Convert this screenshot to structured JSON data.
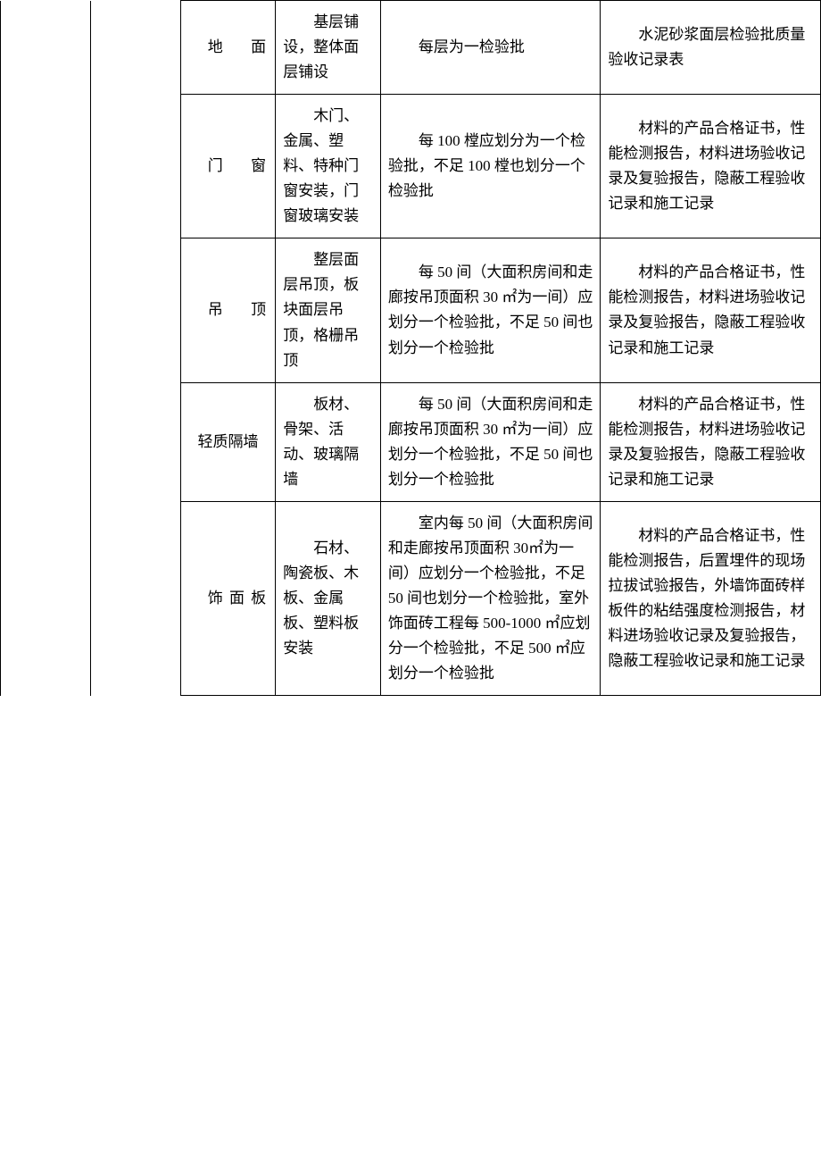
{
  "rows": [
    {
      "category": "地面",
      "items": "基层铺设，整体面层铺设",
      "batch": "每层为一检验批",
      "docs": "水泥砂浆面层检验批质量验收记录表"
    },
    {
      "category": "门窗",
      "items": "木门、金属、塑料、特种门窗安装，门窗玻璃安装",
      "batch": "每 100 樘应划分为一个检验批，不足 100 樘也划分一个检验批",
      "docs": "材料的产品合格证书，性能检测报告，材料进场验收记录及复验报告，隐蔽工程验收记录和施工记录"
    },
    {
      "category": "吊顶",
      "items": "整层面层吊顶，板块面层吊顶，格栅吊顶",
      "batch": "每 50 间（大面积房间和走廊按吊顶面积 30 ㎡为一间）应划分一个检验批，不足 50 间也划分一个检验批",
      "docs": "材料的产品合格证书，性能检测报告，材料进场验收记录及复验报告，隐蔽工程验收记录和施工记录"
    },
    {
      "category": "轻质隔墙",
      "items": "板材、骨架、活动、玻璃隔墙",
      "batch": "每 50 间（大面积房间和走廊按吊顶面积 30 ㎡为一间）应划分一个检验批，不足 50 间也划分一个检验批",
      "docs": "材料的产品合格证书，性能检测报告，材料进场验收记录及复验报告，隐蔽工程验收记录和施工记录"
    },
    {
      "category": "饰面板",
      "items": "石材、陶瓷板、木板、金属板、塑料板安装",
      "batch": "室内每 50 间（大面积房间和走廊按吊顶面积 30㎡为一间）应划分一个检验批，不足 50 间也划分一个检验批，室外饰面砖工程每 500-1000 ㎡应划分一个检验批，不足 500 ㎡应划分一个检验批",
      "docs": "材料的产品合格证书，性能检测报告，后置埋件的现场拉拔试验报告，外墙饰面砖样板件的粘结强度检测报告，材料进场验收记录及复验报告，隐蔽工程验收记录和施工记录"
    }
  ]
}
